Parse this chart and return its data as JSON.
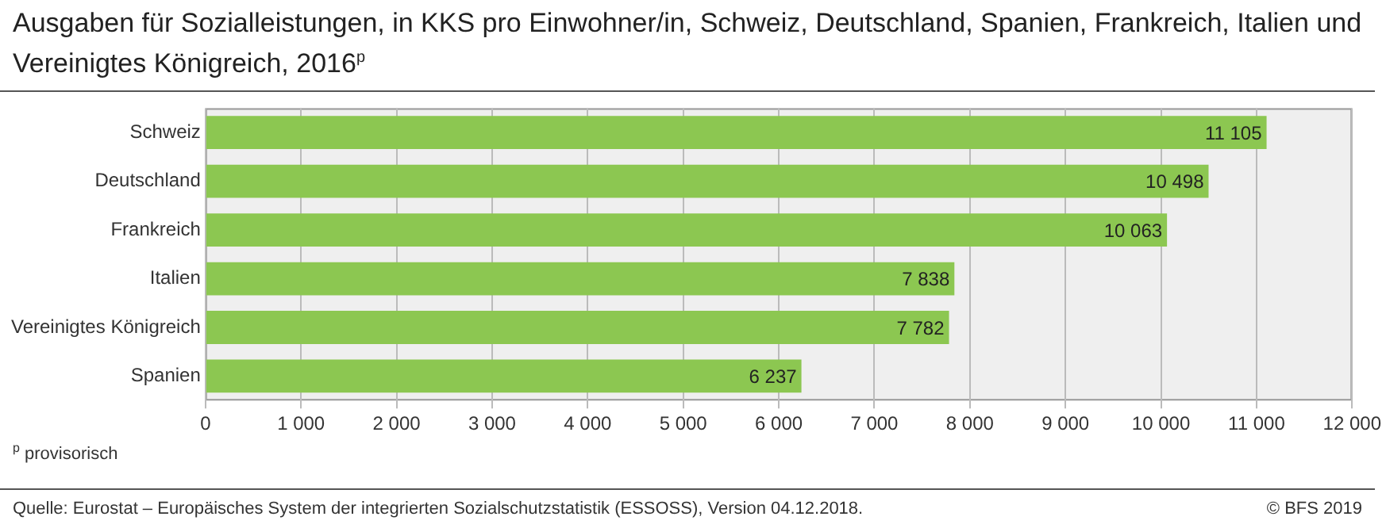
{
  "chart_data": {
    "type": "bar",
    "orientation": "horizontal",
    "title": "Ausgaben für Sozialleistungen, in KKS pro Einwohner/in, Schweiz, Deutschland, Spanien, Frankreich, Italien und Vereinigtes Königreich, 2016$^{p}$",
    "categories": [
      "Schweiz",
      "Deutschland",
      "Frankreich",
      "Italien",
      "Vereinigtes Königreich",
      "Spanien"
    ],
    "values": [
      11105,
      10498,
      10063,
      7838,
      7782,
      6237
    ],
    "value_labels": [
      "11 105",
      "10 498",
      "10 063",
      "7 838",
      "7 782",
      "6 237"
    ],
    "color": "#8cc751",
    "xlim": [
      0,
      12000
    ],
    "xticks": [
      0,
      {
        "value": 1000,
        "label": "1 000"
      },
      {
        "value": 2000,
        "label": "2 000"
      },
      {
        "value": 3000,
        "label": "3 000"
      },
      {
        "value": 4000,
        "label": "4 000"
      },
      {
        "value": 5000,
        "label": "5 000"
      },
      {
        "value": 6000,
        "label": "6 000"
      },
      {
        "value": 7000,
        "label": "7 000"
      },
      {
        "value": 8000,
        "label": "8 000"
      },
      {
        "value": 9000,
        "label": "9 000"
      },
      {
        "value": 10000,
        "label": "10 000"
      },
      {
        "value": 11000,
        "label": "11 000"
      },
      {
        "value": 12000,
        "label": "12 000"
      }
    ],
    "grid": "x",
    "legend": false,
    "annotations": [
      "$^{p}$ provisorisch",
      "Quelle: Eurostat – Europäisches System der integrierten Sozialschutzstatistik (ESSOSS), Version 04.12.2018.",
      "© BFS 2019"
    ]
  }
}
